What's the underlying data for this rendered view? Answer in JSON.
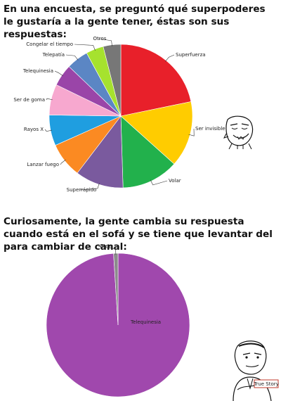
{
  "heading_1": "En una encuesta, se preguntó qué superpoderes le gustaría a la gente tener, éstas son sus respuestas:",
  "heading_2": "Curiosamente, la gente cambia su respuesta cuando está en el sofá y se tiene que levantar del para cambiar de canal:",
  "badge_text": "True Story",
  "chart_data": [
    {
      "type": "pie",
      "title": "",
      "slices": [
        {
          "label": "Superfuerza",
          "value": 22,
          "color": "#e8202a"
        },
        {
          "label": "Ser invisible",
          "value": 15,
          "color": "#ffcc00"
        },
        {
          "label": "Volar",
          "value": 13,
          "color": "#22b14c"
        },
        {
          "label": "Superrápido",
          "value": 11,
          "color": "#7a5a9e"
        },
        {
          "label": "Lanzar fuego",
          "value": 8,
          "color": "#fb8a22"
        },
        {
          "label": "Rayos X",
          "value": 7,
          "color": "#1f9ee0"
        },
        {
          "label": "Ser de goma",
          "value": 7,
          "color": "#f7a8cf"
        },
        {
          "label": "Telequinesia",
          "value": 5,
          "color": "#9a45a8"
        },
        {
          "label": "Telepatía",
          "value": 5,
          "color": "#5b86c4"
        },
        {
          "label": "Congelar el tiempo",
          "value": 4,
          "color": "#a6e22e"
        },
        {
          "label": "Otros",
          "value": 4,
          "color": "#777777"
        }
      ],
      "legend": "none",
      "labels": "outside with leader lines"
    },
    {
      "type": "pie",
      "title": "",
      "slices": [
        {
          "label": "Telequinesia",
          "value": 99,
          "color": "#a048ad"
        },
        {
          "label": "Otros",
          "value": 1,
          "color": "#8c8c8c"
        }
      ],
      "legend": "none",
      "labels": "inside and outside with leader line"
    }
  ]
}
